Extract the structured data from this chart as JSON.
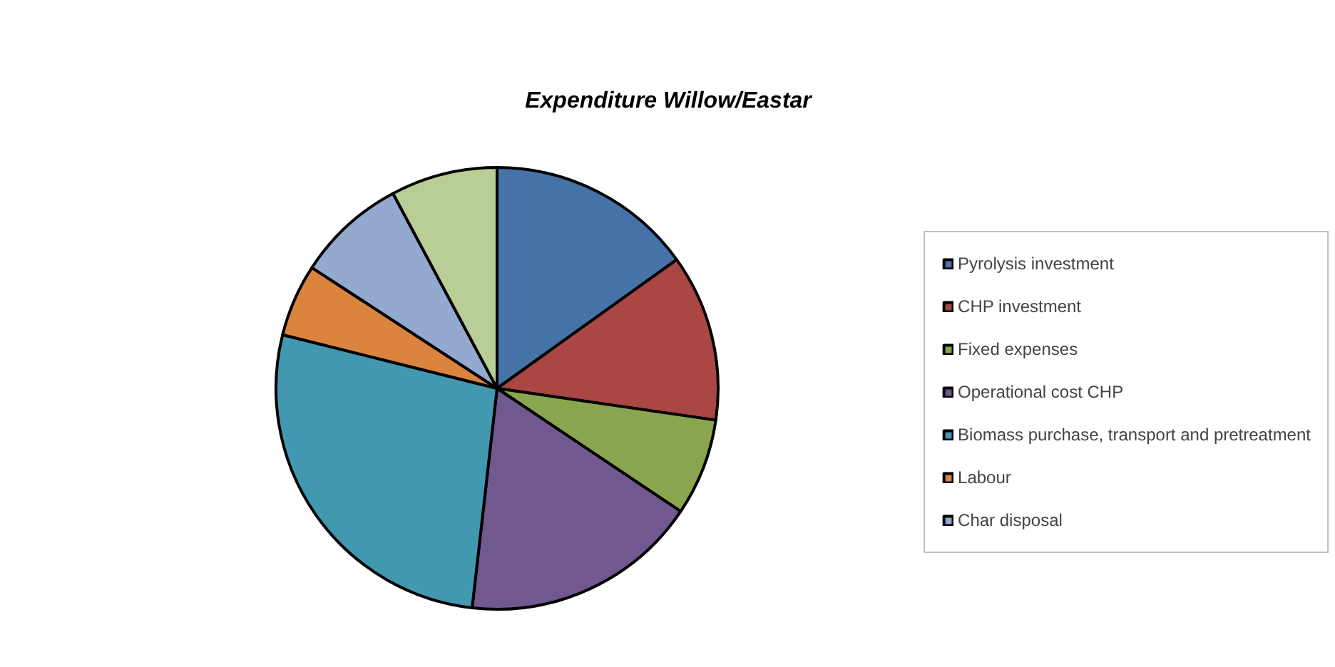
{
  "chart_data": {
    "type": "pie",
    "title": "Expenditure Willow/Eastar",
    "categories": [
      "Pyrolysis investment",
      "CHP investment",
      "Fixed expenses",
      "Operational cost CHP",
      "Biomass purchase, transport and pretreatment",
      "Labour",
      "Char disposal",
      null
    ],
    "values": [
      15.1,
      12.2,
      7.1,
      17.4,
      27.1,
      5.3,
      8.0,
      7.8
    ],
    "colors": [
      "#4572a7",
      "#aa4643",
      "#89a54e",
      "#71588f",
      "#4198af",
      "#db843d",
      "#93a9cf",
      "#b9cd96"
    ],
    "legend": "right"
  }
}
